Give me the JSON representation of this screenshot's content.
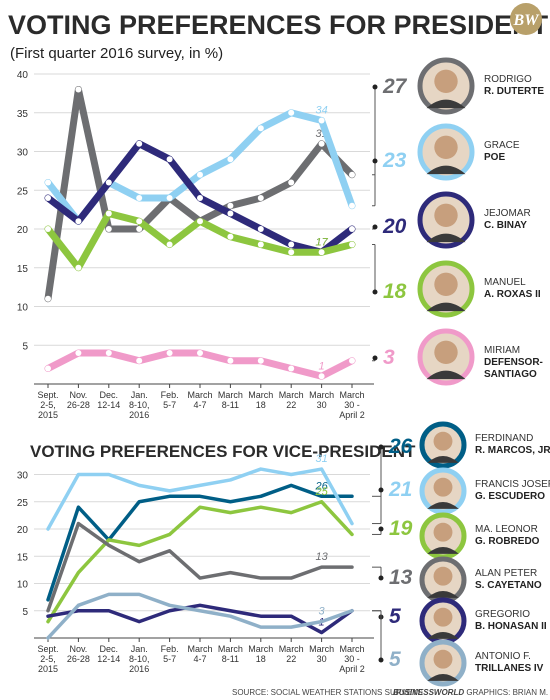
{
  "header": {
    "title": "VOTING PREFERENCES FOR PRESIDENT",
    "subtitle": "(First quarter 2016 survey, in %)",
    "logo": "BW"
  },
  "x_labels": [
    [
      "Sept.",
      "2-5,",
      "2015"
    ],
    [
      "Nov.",
      "26-28"
    ],
    [
      "Dec.",
      "12-14"
    ],
    [
      "Jan.",
      "8-10,",
      "2016"
    ],
    [
      "Feb.",
      "5-7"
    ],
    [
      "March",
      "4-7"
    ],
    [
      "March",
      "8-11"
    ],
    [
      "March",
      "18"
    ],
    [
      "March",
      "22"
    ],
    [
      "March",
      "30"
    ],
    [
      "March",
      "30 -",
      "April 2"
    ]
  ],
  "chart_data": [
    {
      "type": "line",
      "title": "VOTING PREFERENCES FOR PRESIDENT",
      "subtitle": "(First quarter 2016 survey, in %)",
      "y_ticks": [
        5,
        10,
        15,
        20,
        25,
        30,
        35,
        40
      ],
      "ylim": [
        0,
        40
      ],
      "grid": true,
      "series": [
        {
          "name": "RODRIGO R. DUTERTE",
          "color": "#6d6e71",
          "values": [
            11,
            38,
            20,
            20,
            24,
            21,
            23,
            24,
            26,
            31,
            27
          ],
          "final_label": "27",
          "point_labels": [
            {
              "index": 9,
              "text": "31"
            }
          ]
        },
        {
          "name": "GRACE POE",
          "color": "#8fd0f2",
          "values": [
            26,
            21,
            26,
            24,
            24,
            27,
            29,
            33,
            35,
            34,
            23
          ],
          "final_label": "23",
          "point_labels": [
            {
              "index": 9,
              "text": "34"
            }
          ]
        },
        {
          "name": "JEJOMAR C. BINAY",
          "color": "#2e2a7a",
          "values": [
            24,
            21,
            26,
            31,
            29,
            24,
            22,
            20,
            18,
            17,
            20
          ],
          "final_label": "20",
          "point_labels": [
            {
              "index": 9,
              "text": "17"
            }
          ]
        },
        {
          "name": "MANUEL A. ROXAS II",
          "color": "#8dc63f",
          "values": [
            20,
            15,
            22,
            21,
            18,
            21,
            19,
            18,
            17,
            17,
            18
          ],
          "final_label": "18",
          "point_labels": [
            {
              "index": 9,
              "text": "17"
            }
          ]
        },
        {
          "name": "MIRIAM DEFENSOR-SANTIAGO",
          "color": "#f09ac9",
          "values": [
            2,
            4,
            4,
            3,
            4,
            4,
            3,
            3,
            2,
            1,
            3
          ],
          "final_label": "3",
          "point_labels": [
            {
              "index": 9,
              "text": "1"
            }
          ]
        }
      ]
    },
    {
      "type": "line",
      "title": "VOTING PREFERENCES FOR VICE-PRESIDENT",
      "y_ticks": [
        5,
        10,
        15,
        20,
        25,
        30
      ],
      "ylim": [
        0,
        33
      ],
      "grid": true,
      "series": [
        {
          "name": "FERDINAND R. MARCOS, JR.",
          "color": "#005e86",
          "values": [
            7,
            24,
            18,
            25,
            26,
            26,
            25,
            26,
            28,
            26,
            26
          ],
          "final_label": "26",
          "point_labels": [
            {
              "index": 9,
              "text": "26"
            }
          ]
        },
        {
          "name": "FRANCIS JOSEPH G. ESCUDERO",
          "color": "#8fd0f2",
          "values": [
            20,
            30,
            30,
            28,
            27,
            28,
            29,
            31,
            30,
            31,
            21
          ],
          "final_label": "21",
          "point_labels": [
            {
              "index": 9,
              "text": "31"
            }
          ]
        },
        {
          "name": "MA. LEONOR G. ROBREDO",
          "color": "#8dc63f",
          "values": [
            3,
            12,
            18,
            17,
            19,
            24,
            23,
            24,
            23,
            25,
            19
          ],
          "final_label": "19",
          "point_labels": [
            {
              "index": 9,
              "text": "25"
            }
          ]
        },
        {
          "name": "ALAN PETER S. CAYETANO",
          "color": "#6d6e71",
          "values": [
            5,
            21,
            17,
            14,
            16,
            11,
            12,
            11,
            11,
            13,
            13
          ],
          "final_label": "13",
          "point_labels": [
            {
              "index": 9,
              "text": "13"
            }
          ]
        },
        {
          "name": "GREGORIO B. HONASAN II",
          "color": "#2e2a7a",
          "values": [
            4,
            5,
            5,
            3,
            5,
            6,
            5,
            4,
            4,
            1,
            5
          ],
          "final_label": "5",
          "point_labels": [
            {
              "index": 9,
              "text": "1"
            }
          ]
        },
        {
          "name": "ANTONIO F. TRILLANES IV",
          "color": "#8fb0c8",
          "values": [
            0,
            6,
            8,
            8,
            6,
            5,
            4,
            2,
            2,
            3,
            5
          ],
          "final_label": "5",
          "point_labels": [
            {
              "index": 9,
              "text": "3"
            }
          ]
        }
      ]
    }
  ],
  "presidential_candidates": [
    {
      "first": "RODRIGO",
      "last": "R. DUTERTE"
    },
    {
      "first": "GRACE",
      "last": "POE"
    },
    {
      "first": "JEJOMAR",
      "last": "C. BINAY"
    },
    {
      "first": "MANUEL",
      "last": "A. ROXAS II"
    },
    {
      "first": "MIRIAM",
      "last": "DEFENSOR-",
      "last2": "SANTIAGO"
    }
  ],
  "vp_candidates": [
    {
      "first": "FERDINAND",
      "last": "R. MARCOS, JR."
    },
    {
      "first": "FRANCIS JOSEPH",
      "last": "G. ESCUDERO"
    },
    {
      "first": "MA. LEONOR",
      "last": "G. ROBREDO"
    },
    {
      "first": "ALAN PETER",
      "last": "S. CAYETANO"
    },
    {
      "first": "GREGORIO",
      "last": "B. HONASAN II"
    },
    {
      "first": "ANTONIO F.",
      "last": "TRILLANES IV"
    }
  ],
  "footer": {
    "source": "SOURCE: SOCIAL WEATHER STATIONS SURVEYS",
    "brand": "BUSINESSWORLD",
    "credit": " GRAPHICS: BRIAN M. AFUANG"
  }
}
